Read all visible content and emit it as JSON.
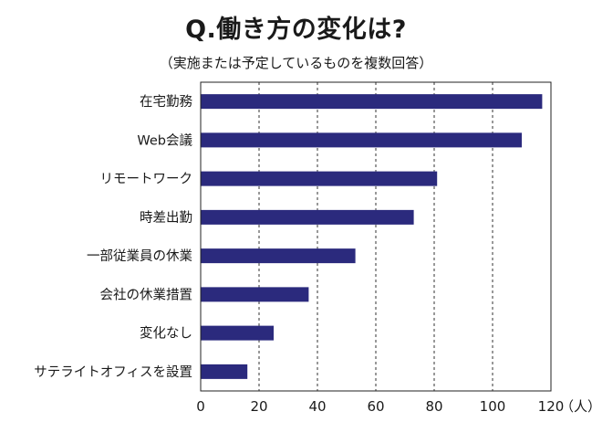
{
  "chart_data": {
    "type": "bar",
    "orientation": "horizontal",
    "title": "Q.働き方の変化は?",
    "subtitle": "（実施または予定しているものを複数回答）",
    "categories": [
      "在宅勤務",
      "Web会議",
      "リモートワーク",
      "時差出勤",
      "一部従業員の休業",
      "会社の休業措置",
      "変化なし",
      "サテライトオフィスを設置"
    ],
    "values": [
      117,
      110,
      81,
      73,
      53,
      37,
      25,
      16
    ],
    "xlim": [
      0,
      120
    ],
    "xticks": [
      "0",
      "20",
      "40",
      "60",
      "80",
      "100",
      "120"
    ],
    "xunit": "（人）",
    "grid": "vertical-dashed",
    "bar_color": "#2b2a7d"
  }
}
